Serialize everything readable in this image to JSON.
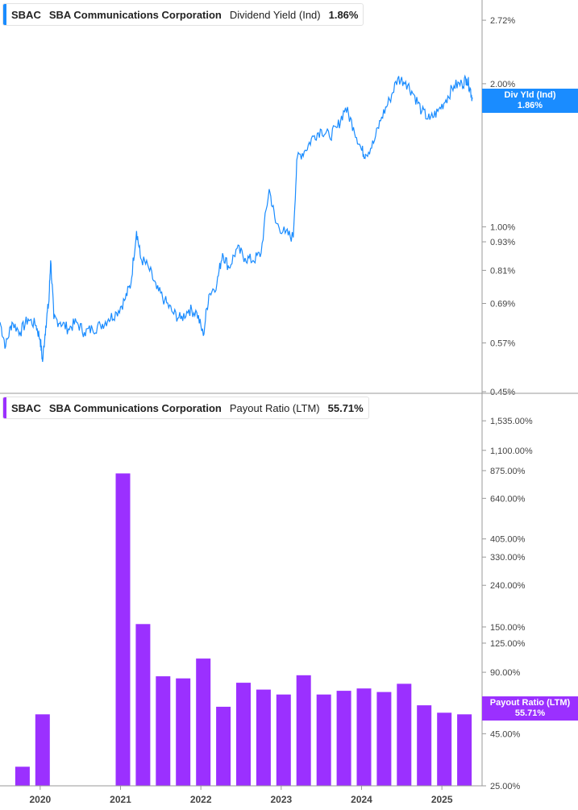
{
  "colors": {
    "yield": "#1a8cff",
    "payout": "#9b30ff",
    "axis": "#999999",
    "grid_tick": "#999999"
  },
  "top_legend": {
    "ticker": "SBAC",
    "company": "SBA Communications Corporation",
    "metric": "Dividend Yield (Ind)",
    "value": "1.86%"
  },
  "bottom_legend": {
    "ticker": "SBAC",
    "company": "SBA Communications Corporation",
    "metric": "Payout Ratio (LTM)",
    "value": "55.71%"
  },
  "top_tag": {
    "label": "Div Yld (Ind)",
    "value": "1.86%"
  },
  "bottom_tag": {
    "label": "Payout Ratio (LTM)",
    "value": "55.71%"
  },
  "chart_data": [
    {
      "type": "line",
      "title": "SBAC SBA Communications Corporation Dividend Yield (Ind) 1.86%",
      "scale": "log",
      "ylim": [
        0.45,
        3.0
      ],
      "y_ticks": [
        {
          "v": 2.72,
          "label": "2.72%"
        },
        {
          "v": 2.0,
          "label": "2.00%"
        },
        {
          "v": 1.0,
          "label": "1.00%"
        },
        {
          "v": 0.93,
          "label": "0.93%"
        },
        {
          "v": 0.81,
          "label": "0.81%"
        },
        {
          "v": 0.69,
          "label": "0.69%"
        },
        {
          "v": 0.57,
          "label": "0.57%"
        },
        {
          "v": 0.45,
          "label": "0.45%"
        }
      ],
      "series": [
        {
          "name": "Dividend Yield (Ind)",
          "points": [
            [
              2019.45,
              0.63
            ],
            [
              2019.52,
              0.56
            ],
            [
              2019.6,
              0.63
            ],
            [
              2019.7,
              0.6
            ],
            [
              2019.8,
              0.64
            ],
            [
              2019.9,
              0.62
            ],
            [
              2019.95,
              0.58
            ],
            [
              2019.98,
              0.52
            ],
            [
              2020.02,
              0.62
            ],
            [
              2020.06,
              0.7
            ],
            [
              2020.08,
              0.85
            ],
            [
              2020.12,
              0.64
            ],
            [
              2020.2,
              0.63
            ],
            [
              2020.3,
              0.61
            ],
            [
              2020.4,
              0.63
            ],
            [
              2020.5,
              0.6
            ],
            [
              2020.6,
              0.61
            ],
            [
              2020.7,
              0.62
            ],
            [
              2020.8,
              0.64
            ],
            [
              2020.9,
              0.66
            ],
            [
              2021.0,
              0.7
            ],
            [
              2021.08,
              0.76
            ],
            [
              2021.15,
              0.98
            ],
            [
              2021.2,
              0.86
            ],
            [
              2021.3,
              0.82
            ],
            [
              2021.4,
              0.74
            ],
            [
              2021.5,
              0.7
            ],
            [
              2021.6,
              0.66
            ],
            [
              2021.7,
              0.64
            ],
            [
              2021.8,
              0.67
            ],
            [
              2021.9,
              0.66
            ],
            [
              2021.98,
              0.59
            ],
            [
              2022.05,
              0.72
            ],
            [
              2022.15,
              0.76
            ],
            [
              2022.22,
              0.88
            ],
            [
              2022.3,
              0.82
            ],
            [
              2022.4,
              0.9
            ],
            [
              2022.5,
              0.86
            ],
            [
              2022.6,
              0.85
            ],
            [
              2022.7,
              0.88
            ],
            [
              2022.8,
              1.2
            ],
            [
              2022.88,
              1.02
            ],
            [
              2023.0,
              0.97
            ],
            [
              2023.1,
              0.95
            ],
            [
              2023.15,
              1.4
            ],
            [
              2023.25,
              1.45
            ],
            [
              2023.35,
              1.55
            ],
            [
              2023.45,
              1.6
            ],
            [
              2023.55,
              1.55
            ],
            [
              2023.65,
              1.62
            ],
            [
              2023.75,
              1.78
            ],
            [
              2023.85,
              1.62
            ],
            [
              2023.95,
              1.45
            ],
            [
              2024.0,
              1.42
            ],
            [
              2024.1,
              1.5
            ],
            [
              2024.2,
              1.7
            ],
            [
              2024.3,
              1.85
            ],
            [
              2024.4,
              2.05
            ],
            [
              2024.5,
              2.02
            ],
            [
              2024.6,
              1.9
            ],
            [
              2024.7,
              1.75
            ],
            [
              2024.8,
              1.68
            ],
            [
              2024.9,
              1.75
            ],
            [
              2025.0,
              1.85
            ],
            [
              2025.1,
              1.98
            ],
            [
              2025.2,
              2.0
            ],
            [
              2025.26,
              2.05
            ],
            [
              2025.3,
              1.96
            ],
            [
              2025.33,
              1.86
            ]
          ]
        }
      ]
    },
    {
      "type": "bar",
      "title": "SBAC SBA Communications Corporation Payout Ratio (LTM) 55.71%",
      "scale": "log",
      "ylim": [
        25,
        2000
      ],
      "y_ticks": [
        {
          "v": 1535,
          "label": "1,535.00%"
        },
        {
          "v": 1100,
          "label": "1,100.00%"
        },
        {
          "v": 875,
          "label": "875.00%"
        },
        {
          "v": 640,
          "label": "640.00%"
        },
        {
          "v": 405,
          "label": "405.00%"
        },
        {
          "v": 330,
          "label": "330.00%"
        },
        {
          "v": 240,
          "label": "240.00%"
        },
        {
          "v": 150,
          "label": "150.00%"
        },
        {
          "v": 125,
          "label": "125.00%"
        },
        {
          "v": 90,
          "label": "90.00%"
        },
        {
          "v": 45,
          "label": "45.00%"
        },
        {
          "v": 25,
          "label": "25.00%"
        }
      ],
      "series": [
        {
          "name": "Payout Ratio (LTM)",
          "bars": [
            [
              2019.73,
              31
            ],
            [
              2019.98,
              56
            ],
            [
              2020.98,
              848
            ],
            [
              2021.23,
              155
            ],
            [
              2021.48,
              86
            ],
            [
              2021.73,
              84
            ],
            [
              2021.98,
              105
            ],
            [
              2022.23,
              61
            ],
            [
              2022.48,
              80
            ],
            [
              2022.73,
              74
            ],
            [
              2022.98,
              70
            ],
            [
              2023.23,
              87
            ],
            [
              2023.48,
              70
            ],
            [
              2023.73,
              73
            ],
            [
              2023.98,
              75
            ],
            [
              2024.23,
              72
            ],
            [
              2024.48,
              79
            ],
            [
              2024.73,
              62
            ],
            [
              2024.98,
              57
            ],
            [
              2025.23,
              56
            ]
          ]
        }
      ]
    }
  ],
  "x_axis": {
    "range": [
      2019.45,
      2025.45
    ],
    "ticks": [
      {
        "v": 2019.95,
        "label": "2020"
      },
      {
        "v": 2020.95,
        "label": "2021"
      },
      {
        "v": 2021.95,
        "label": "2022"
      },
      {
        "v": 2022.95,
        "label": "2023"
      },
      {
        "v": 2023.95,
        "label": "2024"
      },
      {
        "v": 2024.95,
        "label": "2025"
      }
    ]
  }
}
